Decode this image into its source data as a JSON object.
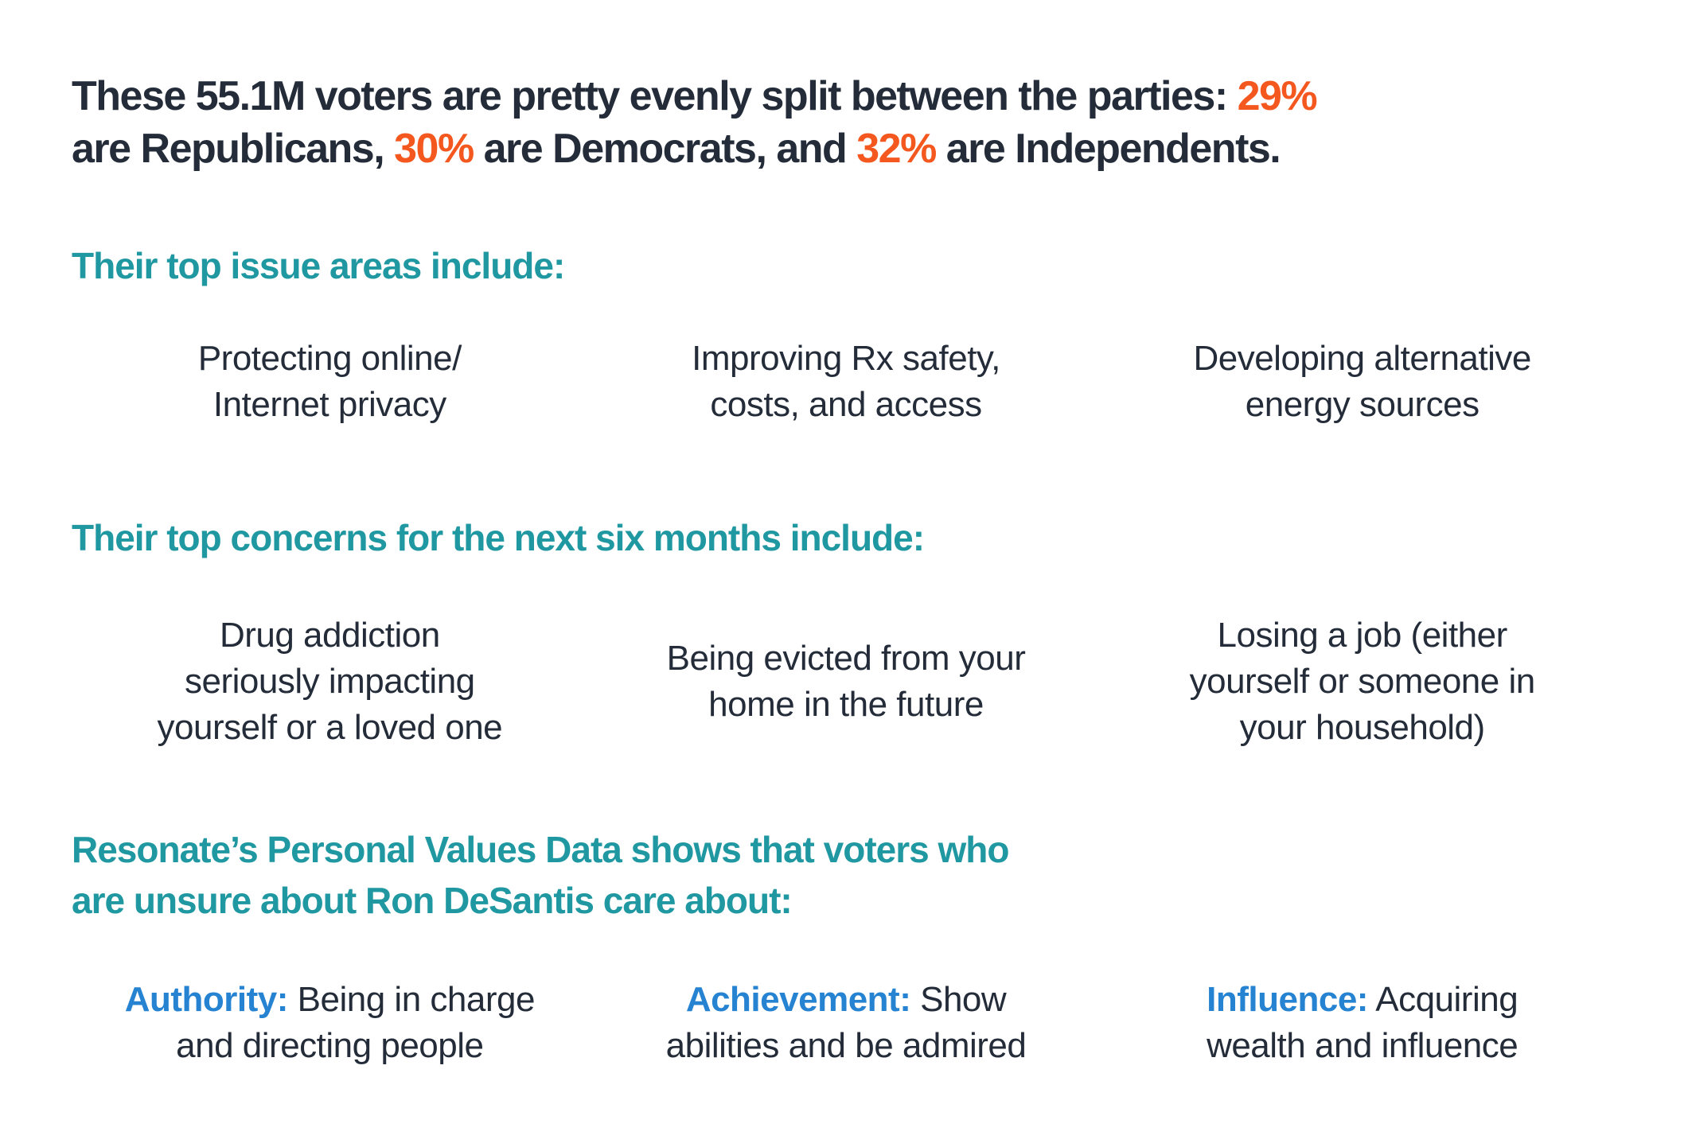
{
  "colors": {
    "text_dark": "#232c38",
    "accent_orange": "#f4581f",
    "accent_teal": "#2098a1",
    "accent_blue": "#2583d2",
    "background": "#ffffff"
  },
  "headline": {
    "line1_text": "These 55.1M voters are pretty evenly split between the parties: ",
    "line1_pct": "29%",
    "line2_seg1": "are Republicans, ",
    "line2_pct1": "30%",
    "line2_seg2": " are Democrats, and ",
    "line2_pct2": "32%",
    "line2_seg3": " are Independents."
  },
  "sections": {
    "issues": {
      "heading": "Their top issue areas include:",
      "items": [
        {
          "lines": [
            "Protecting online/",
            "Internet privacy"
          ]
        },
        {
          "lines": [
            "Improving Rx safety,",
            "costs, and access"
          ]
        },
        {
          "lines": [
            "Developing alternative",
            "energy sources"
          ]
        }
      ]
    },
    "concerns": {
      "heading": "Their top concerns for the next six months include:",
      "items": [
        {
          "lines": [
            "Drug addiction",
            "seriously impacting",
            "yourself or a loved one"
          ]
        },
        {
          "lines": [
            "Being evicted from your",
            "home in the future"
          ]
        },
        {
          "lines": [
            "Losing a job (either",
            "yourself or someone in",
            "your household)"
          ]
        }
      ]
    },
    "values": {
      "heading_line1": "Resonate’s Personal Values Data shows that voters who",
      "heading_line2": "are unsure about Ron DeSantis care about:",
      "items": [
        {
          "term": "Authority:",
          "rest_line1": "Being in charge",
          "line2": "and directing people"
        },
        {
          "term": "Achievement:",
          "rest_line1": "Show",
          "line2": "abilities and be admired"
        },
        {
          "term": "Influence:",
          "rest_line1": "Acquiring",
          "line2": "wealth and influence"
        }
      ]
    }
  }
}
